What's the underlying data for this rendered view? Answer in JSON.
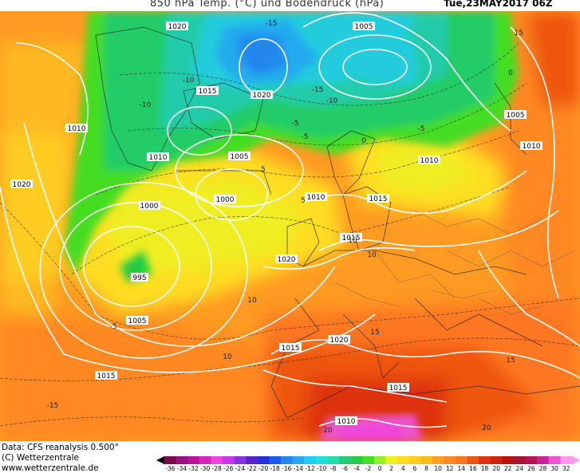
{
  "header": {
    "title": "850 hPa Temp. (°C) und Bodendruck (hPa)",
    "datetime": "Tue,23MAY2017 06Z"
  },
  "footer": {
    "credit_data": "Data: CFS reanalysis 0.500°",
    "credit_copyright": "(C) Wetterzentrale",
    "credit_url": "www.wetterzentrale.de"
  },
  "legend": {
    "labels": [
      "-36",
      "-34",
      "-32",
      "-30",
      "-28",
      "-26",
      "-24",
      "-22",
      "-20",
      "-18",
      "-16",
      "-14",
      "-12",
      "-10",
      "-8",
      "-6",
      "-4",
      "-2",
      "0",
      "2",
      "4",
      "6",
      "8",
      "10",
      "12",
      "14",
      "16",
      "18",
      "20",
      "22",
      "24",
      "26",
      "28",
      "30",
      "32"
    ],
    "colors": [
      "#7a0a48",
      "#99117a",
      "#bb1199",
      "#dd22bb",
      "#ee44dd",
      "#cc33ee",
      "#8833dd",
      "#5522cc",
      "#2233dd",
      "#2255ee",
      "#2288ee",
      "#22aaee",
      "#22ccee",
      "#22dddd",
      "#22ddaa",
      "#22cc77",
      "#22cc44",
      "#44dd22",
      "#99ee22",
      "#eeee22",
      "#ffdd22",
      "#ffcc22",
      "#ffbb22",
      "#ffa022",
      "#ff8822",
      "#ff7722",
      "#ee5511",
      "#dd3311",
      "#cc2211",
      "#bb1111",
      "#aa1133",
      "#bb1155",
      "#cc2299",
      "#ee55cc",
      "#ff99ee"
    ]
  },
  "isobar_labels": [
    {
      "text": "1020"
    },
    {
      "text": "1005"
    },
    {
      "text": "1015"
    },
    {
      "text": "1020"
    },
    {
      "text": "1010"
    },
    {
      "text": "1010"
    },
    {
      "text": "1005"
    },
    {
      "text": "1020"
    },
    {
      "text": "1000"
    },
    {
      "text": "1000"
    },
    {
      "text": "1010"
    },
    {
      "text": "1015"
    },
    {
      "text": "1010"
    },
    {
      "text": "1015"
    },
    {
      "text": "1020"
    },
    {
      "text": "995"
    },
    {
      "text": "1005"
    },
    {
      "text": "1005"
    },
    {
      "text": "1010"
    },
    {
      "text": "1015"
    },
    {
      "text": "1020"
    },
    {
      "text": "1015"
    },
    {
      "text": "1015"
    },
    {
      "text": "1010"
    }
  ],
  "temp_labels": [
    {
      "text": "-15"
    },
    {
      "text": "-10"
    },
    {
      "text": "-10"
    },
    {
      "text": "-15"
    },
    {
      "text": "-10"
    },
    {
      "text": "-5"
    },
    {
      "text": "-5"
    },
    {
      "text": "-5"
    },
    {
      "text": "0"
    },
    {
      "text": "0"
    },
    {
      "text": "5"
    },
    {
      "text": "5"
    },
    {
      "text": "10"
    },
    {
      "text": "10"
    },
    {
      "text": "10"
    },
    {
      "text": "15"
    },
    {
      "text": "15"
    },
    {
      "text": "15"
    },
    {
      "text": "20"
    },
    {
      "text": "20"
    },
    {
      "text": "-5"
    },
    {
      "text": "10"
    },
    {
      "text": "-15"
    }
  ]
}
